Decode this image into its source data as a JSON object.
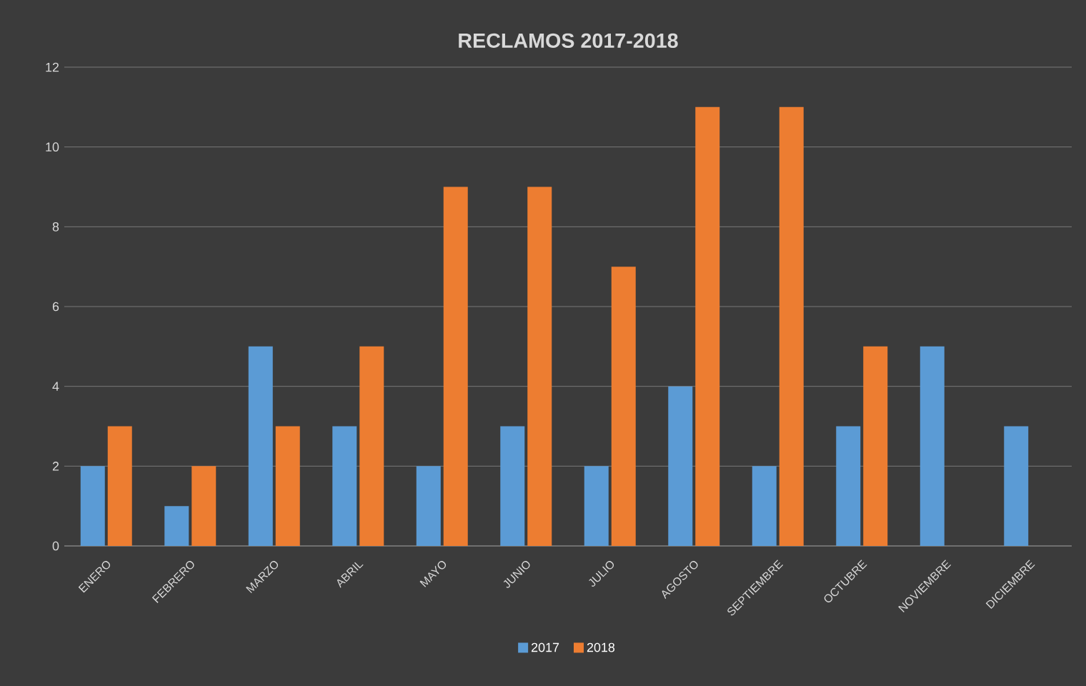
{
  "chart_data": {
    "type": "bar",
    "title": "RECLAMOS 2017-2018",
    "categories": [
      "ENERO",
      "FEBRERO",
      "MARZO",
      "ABRIL",
      "MAYO",
      "JUNIO",
      "JULIO",
      "AGOSTO",
      "SEPTIEMBRE",
      "OCTUBRE",
      "NOVIEMBRE",
      "DICIEMBRE"
    ],
    "series": [
      {
        "name": "2017",
        "color": "#5b9bd5",
        "values": [
          2,
          1,
          5,
          3,
          2,
          3,
          2,
          4,
          2,
          3,
          5,
          3
        ]
      },
      {
        "name": "2018",
        "color": "#ed7d31",
        "values": [
          3,
          2,
          3,
          5,
          9,
          9,
          7,
          11,
          11,
          5,
          null,
          null
        ]
      }
    ],
    "ylim": [
      0,
      12
    ],
    "yticks": [
      0,
      2,
      4,
      6,
      8,
      10,
      12
    ],
    "grid": "y",
    "legend": "bottom"
  }
}
